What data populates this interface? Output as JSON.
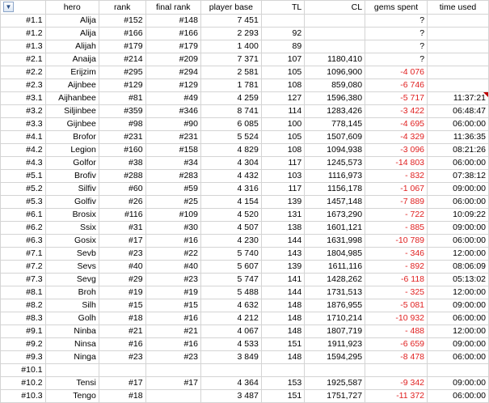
{
  "columns": [
    {
      "key": "id",
      "label": ""
    },
    {
      "key": "hero",
      "label": "hero"
    },
    {
      "key": "rank",
      "label": "rank"
    },
    {
      "key": "final_rank",
      "label": "final rank"
    },
    {
      "key": "player_base",
      "label": "player base"
    },
    {
      "key": "tl",
      "label": "TL"
    },
    {
      "key": "cl",
      "label": "CL"
    },
    {
      "key": "gems_spent",
      "label": "gems spent"
    },
    {
      "key": "time_used",
      "label": "time used"
    }
  ],
  "filter_icon": "filter-sort-icon",
  "colors": {
    "negative": "#e02020",
    "grid": "#d4d4d4",
    "comment_marker": "#c00000"
  },
  "rows": [
    {
      "id": "#1.1",
      "hero": "Alija",
      "rank": "#152",
      "final_rank": "#148",
      "player_base": "7 451",
      "tl": "",
      "cl": "",
      "gems_spent": "?",
      "time_used": ""
    },
    {
      "id": "#1.2",
      "hero": "Alija",
      "rank": "#166",
      "final_rank": "#166",
      "player_base": "2 293",
      "tl": "92",
      "cl": "",
      "gems_spent": "?",
      "time_used": ""
    },
    {
      "id": "#1.3",
      "hero": "Alijah",
      "rank": "#179",
      "final_rank": "#179",
      "player_base": "1 400",
      "tl": "89",
      "cl": "",
      "gems_spent": "?",
      "time_used": ""
    },
    {
      "id": "#2.1",
      "hero": "Anaija",
      "rank": "#214",
      "final_rank": "#209",
      "player_base": "7 371",
      "tl": "107",
      "cl": "1180,410",
      "gems_spent": "?",
      "time_used": ""
    },
    {
      "id": "#2.2",
      "hero": "Erijzim",
      "rank": "#295",
      "final_rank": "#294",
      "player_base": "2 581",
      "tl": "105",
      "cl": "1096,900",
      "gems_spent": "-4 076",
      "time_used": ""
    },
    {
      "id": "#2.3",
      "hero": "Aijnbee",
      "rank": "#129",
      "final_rank": "#129",
      "player_base": "1 781",
      "tl": "108",
      "cl": "859,080",
      "gems_spent": "-6 746",
      "time_used": ""
    },
    {
      "id": "#3.1",
      "hero": "Aijhanbee",
      "rank": "#81",
      "final_rank": "#49",
      "player_base": "4 259",
      "tl": "127",
      "cl": "1596,380",
      "gems_spent": "-5 717",
      "time_used": "11:37:21",
      "marker": true
    },
    {
      "id": "#3.2",
      "hero": "Siljinbee",
      "rank": "#359",
      "final_rank": "#346",
      "player_base": "8 741",
      "tl": "114",
      "cl": "1283,426",
      "gems_spent": "-3 422",
      "time_used": "06:48:47"
    },
    {
      "id": "#3.3",
      "hero": "Gijnbee",
      "rank": "#98",
      "final_rank": "#90",
      "player_base": "6 085",
      "tl": "100",
      "cl": "778,145",
      "gems_spent": "-4 695",
      "time_used": "06:00:00"
    },
    {
      "id": "#4.1",
      "hero": "Brofor",
      "rank": "#231",
      "final_rank": "#231",
      "player_base": "5 524",
      "tl": "105",
      "cl": "1507,609",
      "gems_spent": "-4 329",
      "time_used": "11:36:35"
    },
    {
      "id": "#4.2",
      "hero": "Legion",
      "rank": "#160",
      "final_rank": "#158",
      "player_base": "4 829",
      "tl": "108",
      "cl": "1094,938",
      "gems_spent": "-3 096",
      "time_used": "08:21:26"
    },
    {
      "id": "#4.3",
      "hero": "Golfor",
      "rank": "#38",
      "final_rank": "#34",
      "player_base": "4 304",
      "tl": "117",
      "cl": "1245,573",
      "gems_spent": "-14 803",
      "time_used": "06:00:00"
    },
    {
      "id": "#5.1",
      "hero": "Brofiv",
      "rank": "#288",
      "final_rank": "#283",
      "player_base": "4 432",
      "tl": "103",
      "cl": "1116,973",
      "gems_spent": "- 832",
      "time_used": "07:38:12"
    },
    {
      "id": "#5.2",
      "hero": "Silfiv",
      "rank": "#60",
      "final_rank": "#59",
      "player_base": "4 316",
      "tl": "117",
      "cl": "1156,178",
      "gems_spent": "-1 067",
      "time_used": "09:00:00"
    },
    {
      "id": "#5.3",
      "hero": "Golfiv",
      "rank": "#26",
      "final_rank": "#25",
      "player_base": "4 154",
      "tl": "139",
      "cl": "1457,148",
      "gems_spent": "-7 889",
      "time_used": "06:00:00"
    },
    {
      "id": "#6.1",
      "hero": "Brosix",
      "rank": "#116",
      "final_rank": "#109",
      "player_base": "4 520",
      "tl": "131",
      "cl": "1673,290",
      "gems_spent": "- 722",
      "time_used": "10:09:22"
    },
    {
      "id": "#6.2",
      "hero": "Ssix",
      "rank": "#31",
      "final_rank": "#30",
      "player_base": "4 507",
      "tl": "138",
      "cl": "1601,121",
      "gems_spent": "- 885",
      "time_used": "09:00:00"
    },
    {
      "id": "#6.3",
      "hero": "Gosix",
      "rank": "#17",
      "final_rank": "#16",
      "player_base": "4 230",
      "tl": "144",
      "cl": "1631,998",
      "gems_spent": "-10 789",
      "time_used": "06:00:00"
    },
    {
      "id": "#7.1",
      "hero": "Sevb",
      "rank": "#23",
      "final_rank": "#22",
      "player_base": "5 740",
      "tl": "143",
      "cl": "1804,985",
      "gems_spent": "- 346",
      "time_used": "12:00:00"
    },
    {
      "id": "#7.2",
      "hero": "Sevs",
      "rank": "#40",
      "final_rank": "#40",
      "player_base": "5 607",
      "tl": "139",
      "cl": "1611,116",
      "gems_spent": "- 892",
      "time_used": "08:06:09"
    },
    {
      "id": "#7.3",
      "hero": "Sevg",
      "rank": "#29",
      "final_rank": "#23",
      "player_base": "5 747",
      "tl": "141",
      "cl": "1428,262",
      "gems_spent": "-6 118",
      "time_used": "05:13:02"
    },
    {
      "id": "#8.1",
      "hero": "Broh",
      "rank": "#19",
      "final_rank": "#19",
      "player_base": "5 488",
      "tl": "144",
      "cl": "1731,513",
      "gems_spent": "- 325",
      "time_used": "12:00:00"
    },
    {
      "id": "#8.2",
      "hero": "Silh",
      "rank": "#15",
      "final_rank": "#15",
      "player_base": "4 632",
      "tl": "148",
      "cl": "1876,955",
      "gems_spent": "-5 081",
      "time_used": "09:00:00"
    },
    {
      "id": "#8.3",
      "hero": "Golh",
      "rank": "#18",
      "final_rank": "#16",
      "player_base": "4 212",
      "tl": "148",
      "cl": "1710,214",
      "gems_spent": "-10 932",
      "time_used": "06:00:00"
    },
    {
      "id": "#9.1",
      "hero": "Ninba",
      "rank": "#21",
      "final_rank": "#21",
      "player_base": "4 067",
      "tl": "148",
      "cl": "1807,719",
      "gems_spent": "- 488",
      "time_used": "12:00:00"
    },
    {
      "id": "#9.2",
      "hero": "Ninsa",
      "rank": "#16",
      "final_rank": "#16",
      "player_base": "4 533",
      "tl": "151",
      "cl": "1911,923",
      "gems_spent": "-6 659",
      "time_used": "09:00:00"
    },
    {
      "id": "#9.3",
      "hero": "Ninga",
      "rank": "#23",
      "final_rank": "#23",
      "player_base": "3 849",
      "tl": "148",
      "cl": "1594,295",
      "gems_spent": "-8 478",
      "time_used": "06:00:00"
    },
    {
      "id": "#10.1",
      "hero": "",
      "rank": "",
      "final_rank": "",
      "player_base": "",
      "tl": "",
      "cl": "",
      "gems_spent": "",
      "time_used": ""
    },
    {
      "id": "#10.2",
      "hero": "Tensi",
      "rank": "#17",
      "final_rank": "#17",
      "player_base": "4 364",
      "tl": "153",
      "cl": "1925,587",
      "gems_spent": "-9 342",
      "time_used": "09:00:00"
    },
    {
      "id": "#10.3",
      "hero": "Tengo",
      "rank": "#18",
      "final_rank": "",
      "player_base": "3 487",
      "tl": "151",
      "cl": "1751,727",
      "gems_spent": "-11 372",
      "time_used": "06:00:00"
    }
  ]
}
